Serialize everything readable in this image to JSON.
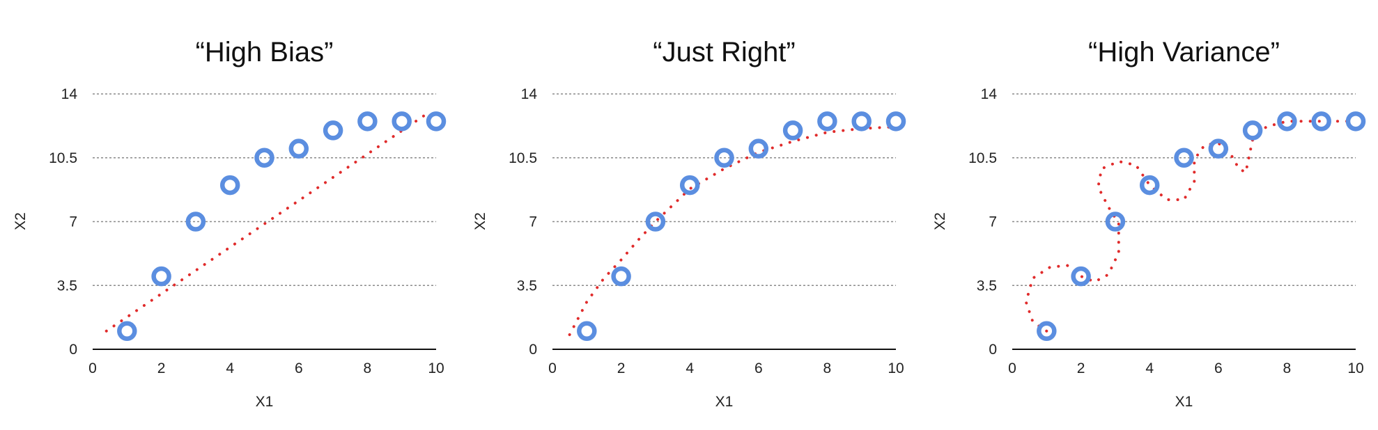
{
  "colors": {
    "points": "#5b8ee0",
    "fit": "#e02b2b",
    "grid": "#8a8a8a",
    "axis": "#111111"
  },
  "chart_data": [
    {
      "type": "scatter",
      "title": "“High Bias”",
      "xlabel": "X1",
      "ylabel": "X2",
      "xlim": [
        0,
        10
      ],
      "ylim": [
        0,
        14
      ],
      "xticks": [
        0,
        2,
        4,
        6,
        8,
        10
      ],
      "yticks": [
        "0",
        "3.5",
        "7",
        "10.5",
        "14"
      ],
      "grid": true,
      "points": [
        [
          1,
          1
        ],
        [
          2,
          4
        ],
        [
          3,
          7
        ],
        [
          4,
          9
        ],
        [
          5,
          10.5
        ],
        [
          6,
          11
        ],
        [
          7,
          12
        ],
        [
          8,
          12.5
        ],
        [
          9,
          12.5
        ],
        [
          10,
          12.5
        ]
      ],
      "fit_curve": [
        [
          0.4,
          1.0
        ],
        [
          9.8,
          13.0
        ]
      ]
    },
    {
      "type": "scatter",
      "title": "“Just Right”",
      "xlabel": "X1",
      "ylabel": "X2",
      "xlim": [
        0,
        10
      ],
      "ylim": [
        0,
        14
      ],
      "xticks": [
        0,
        2,
        4,
        6,
        8,
        10
      ],
      "yticks": [
        "0",
        "3.5",
        "7",
        "10.5",
        "14"
      ],
      "grid": true,
      "points": [
        [
          1,
          1
        ],
        [
          2,
          4
        ],
        [
          3,
          7
        ],
        [
          4,
          9
        ],
        [
          5,
          10.5
        ],
        [
          6,
          11
        ],
        [
          7,
          12
        ],
        [
          8,
          12.5
        ],
        [
          9,
          12.5
        ],
        [
          10,
          12.5
        ]
      ],
      "fit_curve": [
        [
          0.5,
          0.8
        ],
        [
          1.0,
          2.6
        ],
        [
          1.5,
          3.9
        ],
        [
          2.0,
          4.9
        ],
        [
          2.5,
          6.0
        ],
        [
          3.0,
          7.0
        ],
        [
          4.0,
          8.8
        ],
        [
          5.0,
          9.9
        ],
        [
          6.0,
          10.8
        ],
        [
          7.0,
          11.4
        ],
        [
          8.0,
          11.9
        ],
        [
          9.0,
          12.1
        ],
        [
          10.0,
          12.2
        ]
      ]
    },
    {
      "type": "scatter",
      "title": "“High Variance”",
      "xlabel": "X1",
      "ylabel": "X2",
      "xlim": [
        0,
        10
      ],
      "ylim": [
        0,
        14
      ],
      "xticks": [
        0,
        2,
        4,
        6,
        8,
        10
      ],
      "yticks": [
        "0",
        "3.5",
        "7",
        "10.5",
        "14"
      ],
      "grid": true,
      "points": [
        [
          1,
          1
        ],
        [
          2,
          4
        ],
        [
          3,
          7
        ],
        [
          4,
          9
        ],
        [
          5,
          10.5
        ],
        [
          6,
          11
        ],
        [
          7,
          12
        ],
        [
          8,
          12.5
        ],
        [
          9,
          12.5
        ],
        [
          10,
          12.5
        ]
      ],
      "fit_curve": [
        [
          1.0,
          1.0
        ],
        [
          0.6,
          1.5
        ],
        [
          0.4,
          2.6
        ],
        [
          0.6,
          3.9
        ],
        [
          1.1,
          4.5
        ],
        [
          1.6,
          4.6
        ],
        [
          2.0,
          4.0
        ],
        [
          2.4,
          3.7
        ],
        [
          2.8,
          4.1
        ],
        [
          3.1,
          5.3
        ],
        [
          3.1,
          6.9
        ],
        [
          2.8,
          7.8
        ],
        [
          2.5,
          8.9
        ],
        [
          2.6,
          9.9
        ],
        [
          3.1,
          10.3
        ],
        [
          3.6,
          10.1
        ],
        [
          4.0,
          9.0
        ],
        [
          4.5,
          8.2
        ],
        [
          5.0,
          8.2
        ],
        [
          5.3,
          9.2
        ],
        [
          5.3,
          10.4
        ],
        [
          5.6,
          11.2
        ],
        [
          6.0,
          11.3
        ],
        [
          6.3,
          10.9
        ],
        [
          6.6,
          9.9
        ],
        [
          6.8,
          9.7
        ],
        [
          7.0,
          11.5
        ],
        [
          7.4,
          12.2
        ],
        [
          8.0,
          12.5
        ],
        [
          9.0,
          12.5
        ],
        [
          10.0,
          12.5
        ]
      ]
    }
  ]
}
